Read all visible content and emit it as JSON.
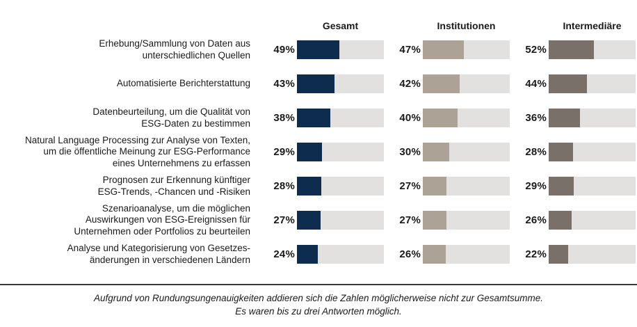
{
  "chart_data": {
    "type": "bar",
    "orientation": "horizontal",
    "value_format": "percent",
    "max_value": 100,
    "track_color": "#e2e1df",
    "groups": [
      "Gesamt",
      "Institutionen",
      "Intermediäre"
    ],
    "categories": [
      "Erhebung/Sammlung von Daten aus unterschiedlichen Quellen",
      "Automatisierte Berichterstattung",
      "Datenbeurteilung, um die Qualität von ESG-Daten zu bestimmen",
      "Natural Language Processing zur Analyse von Texten, um die öffentliche Meinung zur ESG-Performance eines Unternehmens zu erfassen",
      "Prognosen zur Erkennung künftiger ESG-Trends, -Chancen und -Risiken",
      "Szenarioanalyse, um die möglichen Auswirkungen von ESG-Ereignissen für Unternehmen oder Portfolios zu beurteilen",
      "Analyse und Kategorisierung von Gesetzes-änderungen in verschiedenen Ländern"
    ],
    "categories_display": [
      "Erhebung/Sammlung von Daten aus\nunterschiedlichen Quellen",
      "Automatisierte Berichterstattung",
      "Datenbeurteilung, um die Qualität von\nESG-Daten zu bestimmen",
      "Natural Language Processing zur Analyse von Texten,\num die öffentliche Meinung zur ESG-Performance\neines Unternehmens zu erfassen",
      "Prognosen zur Erkennung künftiger\nESG-Trends, -Chancen und -Risiken",
      "Szenarioanalyse, um die möglichen\nAuswirkungen von ESG-Ereignissen für\nUnternehmen oder Portfolios zu beurteilen",
      "Analyse und Kategorisierung von Gesetzes-\nänderungen in verschiedenen Ländern"
    ],
    "series": [
      {
        "name": "Gesamt",
        "color": "#0e2c4d",
        "values": [
          49,
          43,
          38,
          29,
          28,
          27,
          24
        ],
        "labels": [
          "49%",
          "43%",
          "38%",
          "29%",
          "28%",
          "27%",
          "24%"
        ]
      },
      {
        "name": "Institutionen",
        "color": "#aca296",
        "values": [
          47,
          42,
          40,
          30,
          27,
          27,
          26
        ],
        "labels": [
          "47%",
          "42%",
          "40%",
          "30%",
          "27%",
          "27%",
          "26%"
        ]
      },
      {
        "name": "Intermediäre",
        "color": "#7a706a",
        "values": [
          52,
          44,
          36,
          28,
          29,
          26,
          22
        ],
        "labels": [
          "52%",
          "44%",
          "36%",
          "28%",
          "29%",
          "26%",
          "22%"
        ]
      }
    ],
    "footnote": "Aufgrund von Rundungsungenauigkeiten addieren sich die Zahlen möglicherweise nicht zur Gesamtsumme.\nEs waren bis zu drei Antworten möglich."
  }
}
